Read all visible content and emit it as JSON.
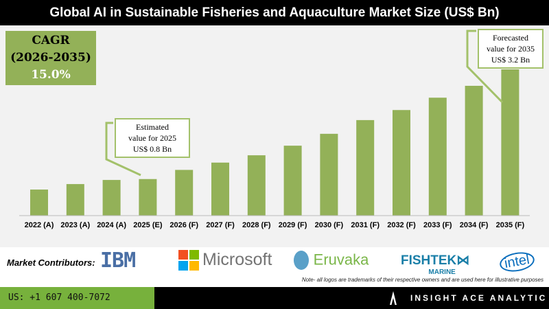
{
  "chart_data": {
    "type": "bar",
    "title": "Global AI in Sustainable Fisheries and Aquaculture Market Size (US$ Bn)",
    "categories": [
      "2022 (A)",
      "2023 (A)",
      "2024 (A)",
      "2025 (E)",
      "2026 (F)",
      "2027 (F)",
      "2028 (F)",
      "2029 (F)",
      "2030 (F)",
      "2031 (F)",
      "2032 (F)",
      "2033 (F)",
      "2034 (F)",
      "2035 (F)"
    ],
    "values": [
      0.57,
      0.69,
      0.78,
      0.8,
      1.0,
      1.16,
      1.32,
      1.53,
      1.79,
      2.09,
      2.31,
      2.58,
      2.84,
      3.2
    ],
    "color": "#93b158",
    "grid": false
  },
  "cagr": {
    "label": "CAGR",
    "period": "(2026-2035)",
    "value": "15.0%"
  },
  "callouts": {
    "est_l1": "Estimated",
    "est_l2": "value for 2025",
    "est_l3": "US$ 0.8 Bn",
    "fc_l1": "Forecasted",
    "fc_l2": "value for 2035",
    "fc_l3": "US$ 3.2 Bn"
  },
  "contributors": {
    "label": "Market Contributors:",
    "logos": [
      "IBM",
      "Microsoft",
      "Eruvaka",
      "FISHTEK",
      "MARINE",
      "intel"
    ],
    "note": "Note- all logos are trademarks of their respective owners and are used here for illustrative purposes"
  },
  "footer": {
    "phone": "US: +1 607 400-7072",
    "brand": "INSIGHT ACE ANALYTIC"
  }
}
